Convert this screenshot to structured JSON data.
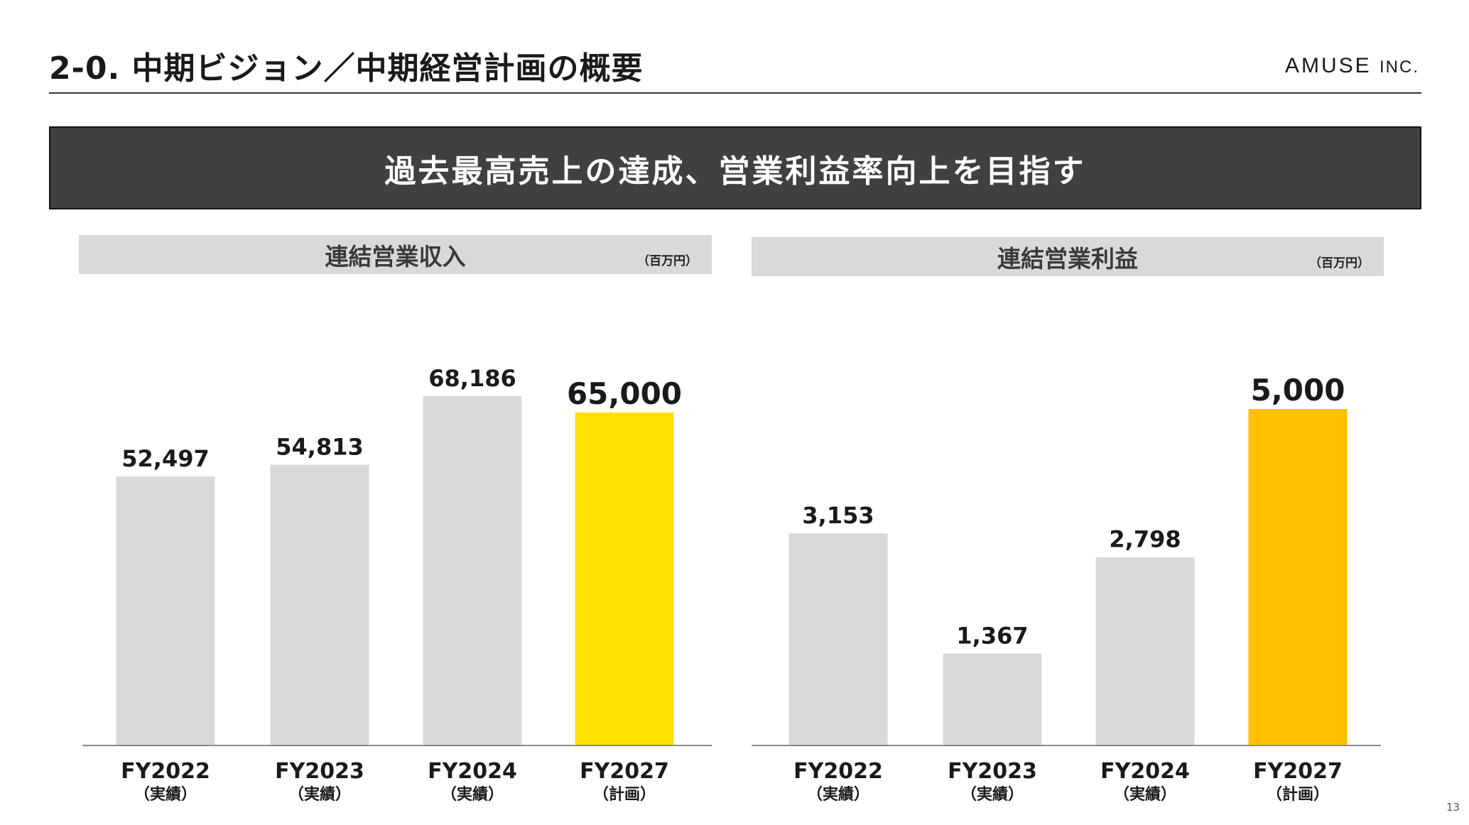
{
  "header": {
    "title": "2-0.  中期ビジョン／中期経営計画の概要",
    "brand_main": "AMUSE",
    "brand_suffix": "INC."
  },
  "banner": {
    "text": "過去最高売上の達成、営業利益率向上を目指す"
  },
  "page_number": "13",
  "colors": {
    "actual_bar": "#d9d9d9",
    "revenue_plan_bar": "#ffe000",
    "profit_plan_bar": "#ffc000",
    "banner_bg": "#404040"
  },
  "chart_data": [
    {
      "type": "bar",
      "title": "連結営業収入",
      "unit": "（百万円）",
      "categories": [
        "FY2022",
        "FY2023",
        "FY2024",
        "FY2027"
      ],
      "category_notes": [
        "（実績）",
        "（実績）",
        "（実績）",
        "（計画）"
      ],
      "values": [
        52497,
        54813,
        68186,
        65000
      ],
      "value_labels": [
        "52,497",
        "54,813",
        "68,186",
        "65,000"
      ],
      "highlight_index": 3,
      "ylim": [
        0,
        68186
      ],
      "grid": false
    },
    {
      "type": "bar",
      "title": "連結営業利益",
      "unit": "（百万円）",
      "categories": [
        "FY2022",
        "FY2023",
        "FY2024",
        "FY2027"
      ],
      "category_notes": [
        "（実績）",
        "（実績）",
        "（実績）",
        "（計画）"
      ],
      "values": [
        3153,
        1367,
        2798,
        5000
      ],
      "value_labels": [
        "3,153",
        "1,367",
        "2,798",
        "5,000"
      ],
      "highlight_index": 3,
      "ylim": [
        0,
        5000
      ],
      "grid": false
    }
  ]
}
